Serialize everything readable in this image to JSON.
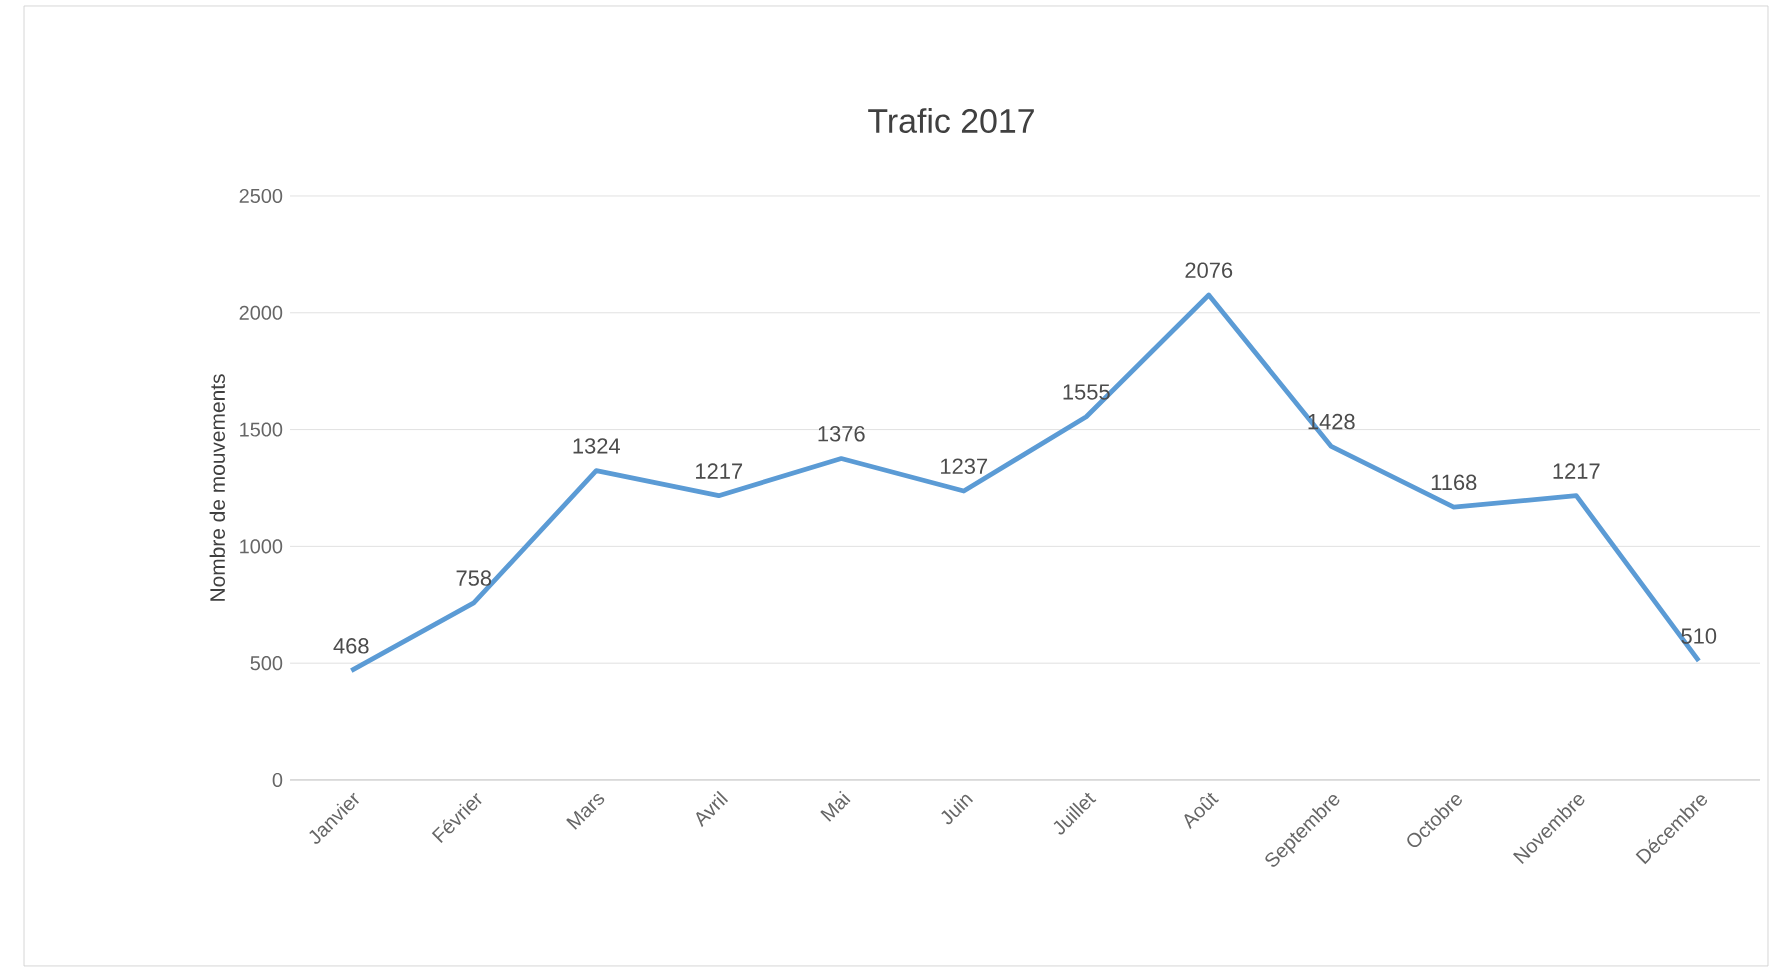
{
  "chart_data": {
    "type": "line",
    "title": "Trafic 2017",
    "ylabel": "Nombre de mouvements",
    "categories": [
      "Janvier",
      "Février",
      "Mars",
      "Avril",
      "Mai",
      "Juin",
      "Juillet",
      "Août",
      "Septembre",
      "Octobre",
      "Novembre",
      "Décembre"
    ],
    "series": [
      {
        "color": "#5b9bd5",
        "values": [
          468,
          758,
          1324,
          1217,
          1376,
          1237,
          1555,
          2076,
          1428,
          1168,
          1217,
          510
        ]
      }
    ],
    "ylim": [
      0,
      2500
    ],
    "yticks": [
      0,
      500,
      1000,
      1500,
      2000,
      2500
    ],
    "grid": "y",
    "data_labels": true,
    "marker": "none",
    "line_style": "solid"
  }
}
